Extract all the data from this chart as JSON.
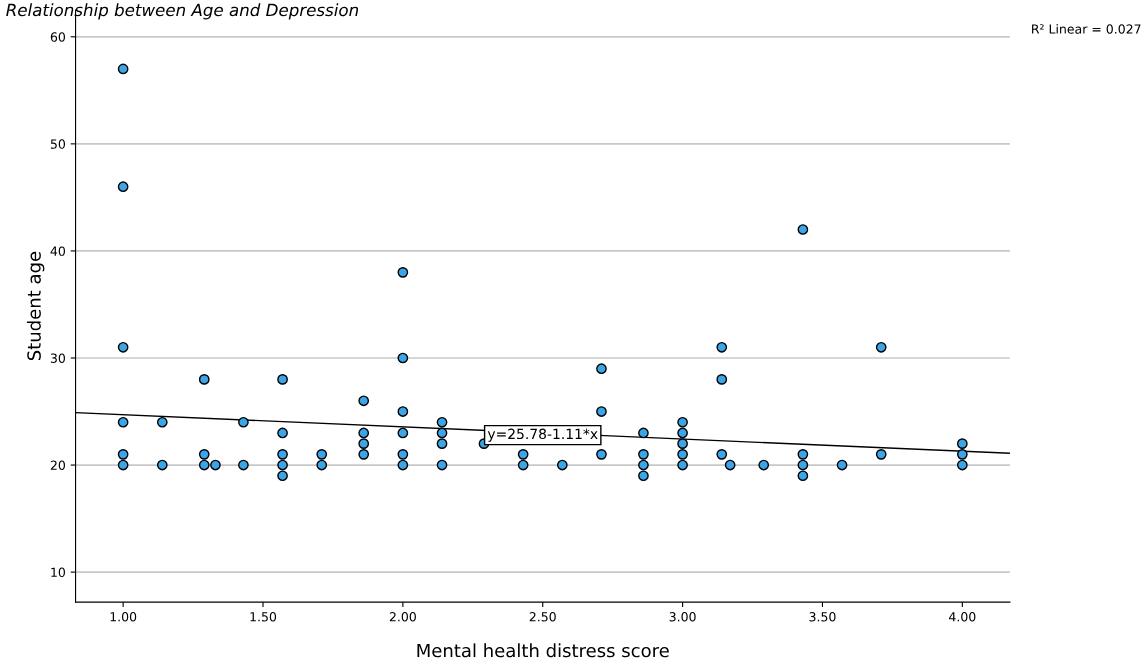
{
  "chart_data": {
    "type": "scatter",
    "title": "Relationship between Age and Depression",
    "xlabel": "Mental health distress score",
    "ylabel": "Student age",
    "series": [
      {
        "color": "#3aa6e8",
        "marker": "circle",
        "x": [
          1,
          1,
          1,
          1,
          1,
          1,
          1.14,
          1.14,
          1.29,
          1.29,
          1.29,
          1.33,
          1.43,
          1.43,
          1.57,
          1.57,
          1.57,
          1.57,
          1.57,
          1.71,
          1.71,
          1.86,
          1.86,
          1.86,
          1.86,
          2,
          2,
          2,
          2,
          2,
          2,
          2.14,
          2.14,
          2.14,
          2.14,
          2.29,
          2.43,
          2.43,
          2.57,
          2.71,
          2.71,
          2.71,
          2.86,
          2.86,
          2.86,
          2.86,
          3,
          3,
          3,
          3,
          3,
          3.14,
          3.14,
          3.14,
          3.17,
          3.29,
          3.43,
          3.43,
          3.43,
          3.43,
          3.57,
          3.71,
          3.71,
          4,
          4,
          4
        ],
        "values": [
          57,
          46,
          31,
          24,
          21,
          20,
          24,
          20,
          28,
          21,
          20,
          20,
          24,
          20,
          28,
          23,
          21,
          20,
          19,
          21,
          20,
          26,
          23,
          22,
          21,
          38,
          30,
          25,
          23,
          21,
          20,
          24,
          23,
          22,
          20,
          22,
          21,
          20,
          20,
          29,
          25,
          21,
          23,
          21,
          20,
          19,
          24,
          23,
          22,
          21,
          20,
          31,
          28,
          21,
          20,
          20,
          42,
          21,
          20,
          19,
          20,
          31,
          21,
          22,
          21,
          20
        ]
      },
      {
        "type": "line",
        "color": "#000000",
        "marker": "none",
        "x": [
          0.83,
          4.17
        ],
        "values": [
          24.9,
          21.1
        ]
      }
    ],
    "annotations": [
      {
        "text": "y=25.78-1.11*x",
        "x": 2.5,
        "y": 22.8
      },
      "R² Linear = 0.027"
    ],
    "xlim": [
      0.83,
      4.17
    ],
    "ylim": [
      7.2,
      62.5
    ],
    "xticks": [
      {
        "value": 1,
        "label": "1.00"
      },
      {
        "value": 1.5,
        "label": "1.50"
      },
      {
        "value": 2,
        "label": "2.00"
      },
      {
        "value": 2.5,
        "label": "2.50"
      },
      {
        "value": 3,
        "label": "3.00"
      },
      {
        "value": 3.5,
        "label": "3.50"
      },
      {
        "value": 4,
        "label": "4.00"
      }
    ],
    "yticks": [
      10,
      20,
      30,
      40,
      50,
      60
    ],
    "grid": "y"
  }
}
